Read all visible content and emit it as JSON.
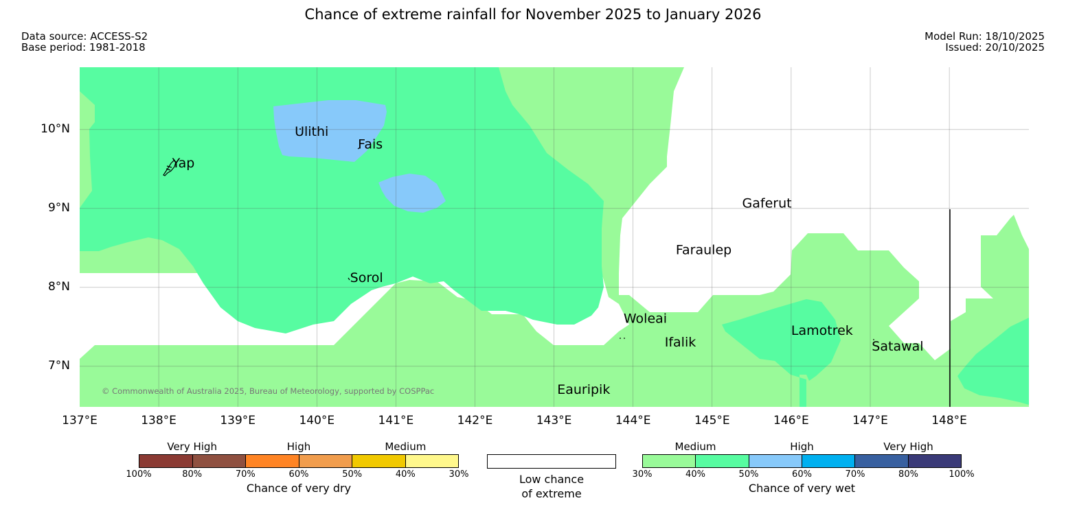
{
  "title": "Chance of extreme rainfall for November 2025 to January 2026",
  "meta_left": {
    "data_source": "Data source: ACCESS-S2",
    "base_period": "Base period: 1981-2018"
  },
  "meta_right": {
    "model_run": "Model Run: 18/10/2025",
    "issued": "Issued: 20/10/2025"
  },
  "map": {
    "lon_range": [
      137,
      149
    ],
    "lat_range": [
      6.5,
      10.8
    ],
    "lon_ticks": [
      {
        "value": 137,
        "label": "137°E"
      },
      {
        "value": 138,
        "label": "138°E"
      },
      {
        "value": 139,
        "label": "139°E"
      },
      {
        "value": 140,
        "label": "140°E"
      },
      {
        "value": 141,
        "label": "141°E"
      },
      {
        "value": 142,
        "label": "142°E"
      },
      {
        "value": 143,
        "label": "143°E"
      },
      {
        "value": 144,
        "label": "144°E"
      },
      {
        "value": 145,
        "label": "145°E"
      },
      {
        "value": 146,
        "label": "146°E"
      },
      {
        "value": 147,
        "label": "147°E"
      },
      {
        "value": 148,
        "label": "148°E"
      }
    ],
    "lat_ticks": [
      {
        "value": 10,
        "label": "10°N"
      },
      {
        "value": 9,
        "label": "9°N"
      },
      {
        "value": 8,
        "label": "8°N"
      },
      {
        "value": 7,
        "label": "7°N"
      }
    ],
    "places": [
      {
        "name": "Yap",
        "lon": 138.17,
        "lat": 9.52
      },
      {
        "name": "Ulithi",
        "lon": 139.72,
        "lat": 9.92
      },
      {
        "name": "Fais",
        "lon": 140.52,
        "lat": 9.76
      },
      {
        "name": "Gaferut",
        "lon": 145.38,
        "lat": 9.01
      },
      {
        "name": "Faraulep",
        "lon": 144.54,
        "lat": 8.42
      },
      {
        "name": "Sorol",
        "lon": 140.42,
        "lat": 8.07
      },
      {
        "name": "Woleai",
        "lon": 143.88,
        "lat": 7.55
      },
      {
        "name": "Ifalik",
        "lon": 144.4,
        "lat": 7.25
      },
      {
        "name": "Lamotrek",
        "lon": 146.0,
        "lat": 7.4
      },
      {
        "name": "Satawal",
        "lon": 147.02,
        "lat": 7.2
      },
      {
        "name": "Eauripik",
        "lon": 143.04,
        "lat": 6.65
      }
    ],
    "copyright": "© Commonwealth of Australia 2025, Bureau of Meteorology, supported by COSPPac",
    "colors": {
      "wet_30_40": "#99fa99",
      "wet_40_50": "#57fca1",
      "wet_50_60": "#87c9fa",
      "grid": "#555555"
    }
  },
  "legend": {
    "dry": {
      "title": "Chance of very dry",
      "categories": [
        "Very High",
        "High",
        "Medium"
      ],
      "ticks": [
        "100%",
        "80%",
        "70%",
        "60%",
        "50%",
        "40%",
        "30%"
      ],
      "colors": [
        "#8b3a33",
        "#8f5040",
        "#ff8424",
        "#f19d4d",
        "#f1c900",
        "#fff88c"
      ]
    },
    "neutral": {
      "line1": "Low chance",
      "line2": "of extreme"
    },
    "wet": {
      "title": "Chance of very wet",
      "categories": [
        "Medium",
        "High",
        "Very High"
      ],
      "ticks": [
        "30%",
        "40%",
        "50%",
        "60%",
        "70%",
        "80%",
        "100%"
      ],
      "colors": [
        "#99fa99",
        "#57fca1",
        "#87c9fa",
        "#00b0f0",
        "#3860a0",
        "#3a3a78"
      ]
    }
  }
}
